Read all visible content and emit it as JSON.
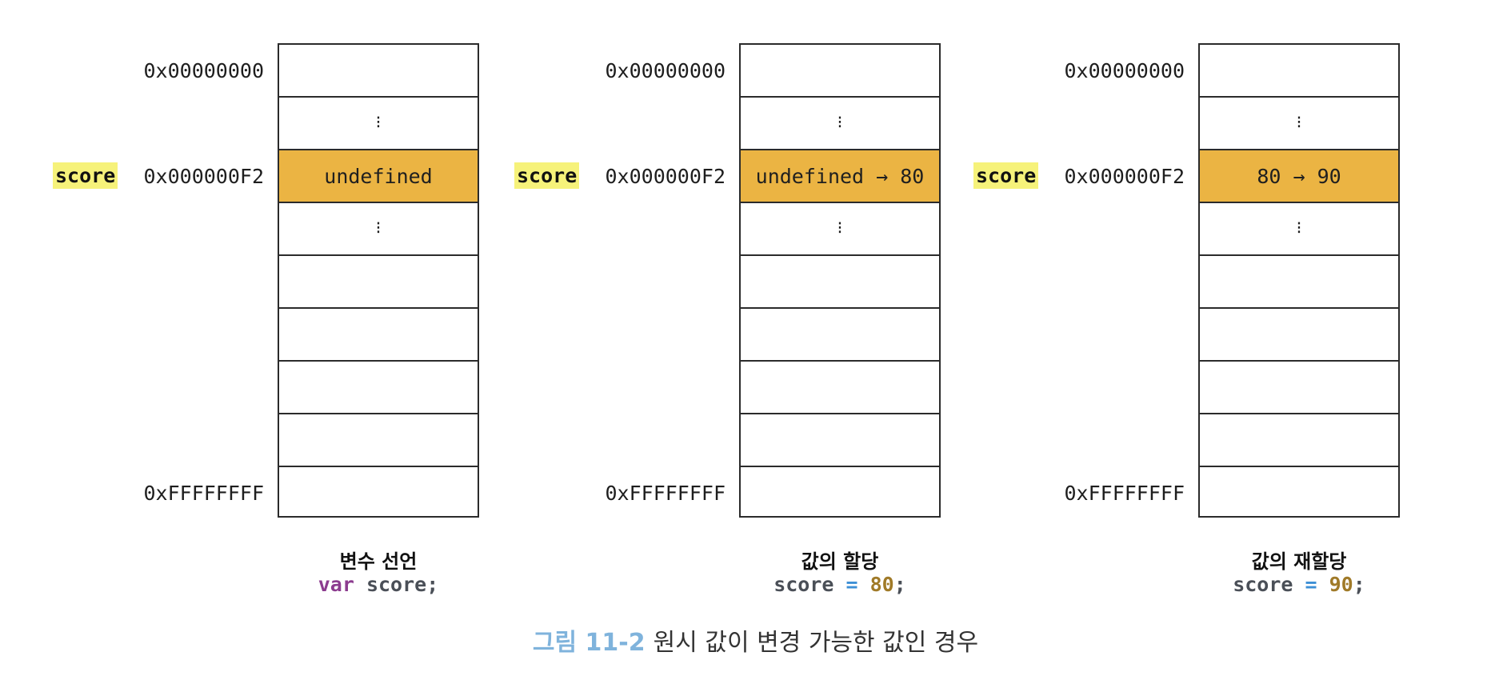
{
  "panels": [
    {
      "var_label": "score",
      "addr_top": "0x00000000",
      "addr_mid": "0x000000F2",
      "addr_bottom": "0xFFFFFFFF",
      "dots_top": "⁝",
      "highlight_value": "undefined",
      "dots_bottom": "⁝",
      "caption_title": "변수 선언",
      "code": {
        "keyword": "var",
        "text": " score;"
      }
    },
    {
      "var_label": "score",
      "addr_top": "0x00000000",
      "addr_mid": "0x000000F2",
      "addr_bottom": "0xFFFFFFFF",
      "dots_top": "⁝",
      "highlight_value": "undefined → 80",
      "dots_bottom": "⁝",
      "caption_title": "값의 할당",
      "code": {
        "pre": "score ",
        "op": "=",
        "num": " 80",
        "post": ";"
      }
    },
    {
      "var_label": "score",
      "addr_top": "0x00000000",
      "addr_mid": "0x000000F2",
      "addr_bottom": "0xFFFFFFFF",
      "dots_top": "⁝",
      "highlight_value": "80 → 90",
      "dots_bottom": "⁝",
      "caption_title": "값의 재할당",
      "code": {
        "pre": "score ",
        "op": "=",
        "num": " 90",
        "post": ";"
      }
    }
  ],
  "figure_caption": {
    "label": "그림 11-2",
    "text": "원시 값이 변경 가능한 값인 경우"
  },
  "colors": {
    "highlight_cell": "#ebb443",
    "var_label_bg": "#f6f27a",
    "keyword": "#8c3c8f",
    "operator": "#3d8fd6",
    "number": "#a07a28",
    "figure_label": "#7fb3dc"
  }
}
